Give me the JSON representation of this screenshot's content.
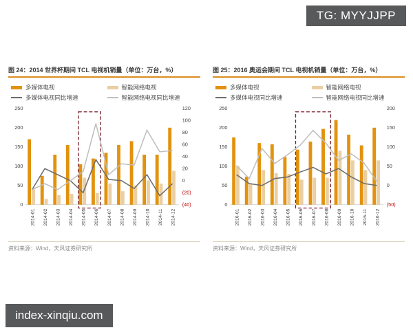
{
  "watermark_top": "TG: MYYJJPP",
  "watermark_bottom": "index-xinqiu.com",
  "colors": {
    "multimedia": "#E2920E",
    "smart": "#EACFA4",
    "multimedia_growth": "#6E6E6E",
    "smart_growth": "#C0BFBD",
    "highlight": "#7A2433",
    "negative": "#C00000",
    "tick": "#404040",
    "title_underline": "#D98C1F",
    "watermark_bg": "#58595B"
  },
  "chart_data": [
    {
      "type": "bar+line",
      "title": "图 24：2014 世界杯期间 TCL 电视机销量（单位：万台，%）",
      "categories": [
        "2014-01",
        "2014-02",
        "2014-03",
        "2014-04",
        "2014-05",
        "2014-06",
        "2014-07",
        "2014-08",
        "2014-09",
        "2014-10",
        "2014-11",
        "2014-12"
      ],
      "series": [
        {
          "name": "多媒体电视",
          "type": "bar",
          "axis": "left",
          "color": "multimedia",
          "values": [
            170,
            75,
            130,
            155,
            105,
            120,
            135,
            155,
            165,
            130,
            130,
            200
          ]
        },
        {
          "name": "智能网络电视",
          "type": "bar",
          "axis": "left",
          "color": "smart",
          "values": [
            40,
            15,
            25,
            28,
            70,
            30,
            55,
            35,
            50,
            63,
            55,
            88
          ]
        },
        {
          "name": "多媒体电视同比增速",
          "type": "line",
          "axis": "right",
          "color": "multimedia_growth",
          "values": [
            -15,
            20,
            10,
            0,
            -20,
            35,
            2,
            0,
            -13,
            10,
            -25,
            -5
          ]
        },
        {
          "name": "智能网络电视同比增速",
          "type": "line",
          "axis": "right",
          "color": "smart_growth",
          "values": [
            -15,
            -5,
            -15,
            0,
            15,
            95,
            10,
            28,
            26,
            84,
            48,
            50
          ]
        }
      ],
      "left_axis": {
        "min": 0,
        "max": 250,
        "ticks": [
          0,
          50,
          100,
          150,
          200,
          250
        ]
      },
      "right_axis": {
        "min": -40,
        "max": 120,
        "ticks": [
          -40,
          -20,
          0,
          20,
          40,
          60,
          80,
          100,
          120
        ]
      },
      "highlight": {
        "start": "2014-05",
        "end": "2014-06",
        "start_index": 4,
        "end_index": 5
      },
      "legend_position": "top",
      "grid": false,
      "source": "资料来源：Wind，天风证券研究所"
    },
    {
      "type": "bar+line",
      "title": "图 25：2016 奥运会期间 TCL 电视机销量（单位：万台，%）",
      "categories": [
        "2016-01",
        "2016-02",
        "2016-03",
        "2016-04",
        "2016-05",
        "2016-06",
        "2016-07",
        "2016-08",
        "2016-09",
        "2016-10",
        "2016-11",
        "2016-12"
      ],
      "series": [
        {
          "name": "多媒体电视",
          "type": "bar",
          "axis": "left",
          "color": "multimedia",
          "values": [
            175,
            73,
            160,
            157,
            124,
            143,
            164,
            197,
            220,
            182,
            154,
            200
          ]
        },
        {
          "name": "智能网络电视",
          "type": "bar",
          "axis": "left",
          "color": "smart",
          "values": [
            100,
            55,
            90,
            82,
            80,
            65,
            70,
            70,
            140,
            115,
            90,
            115
          ]
        },
        {
          "name": "多媒体电视同比增速",
          "type": "line",
          "axis": "right",
          "color": "multimedia_growth",
          "values": [
            28,
            5,
            0,
            18,
            22,
            35,
            47,
            30,
            44,
            22,
            5,
            0
          ]
        },
        {
          "name": "智能网络电视同比增速",
          "type": "line",
          "axis": "right",
          "color": "smart_growth",
          "values": [
            52,
            18,
            96,
            57,
            80,
            105,
            143,
            110,
            65,
            82,
            58,
            10
          ]
        }
      ],
      "left_axis": {
        "min": 0,
        "max": 250,
        "ticks": [
          0,
          50,
          100,
          150,
          200,
          250
        ]
      },
      "right_axis": {
        "min": -50,
        "max": 200,
        "ticks": [
          -50,
          0,
          50,
          100,
          150,
          200
        ]
      },
      "highlight": {
        "start": "2016-06",
        "end": "2016-08",
        "start_index": 5,
        "end_index": 7
      },
      "legend_position": "top",
      "grid": false,
      "source": "资料来源：Wind，天风证券研究所"
    }
  ]
}
